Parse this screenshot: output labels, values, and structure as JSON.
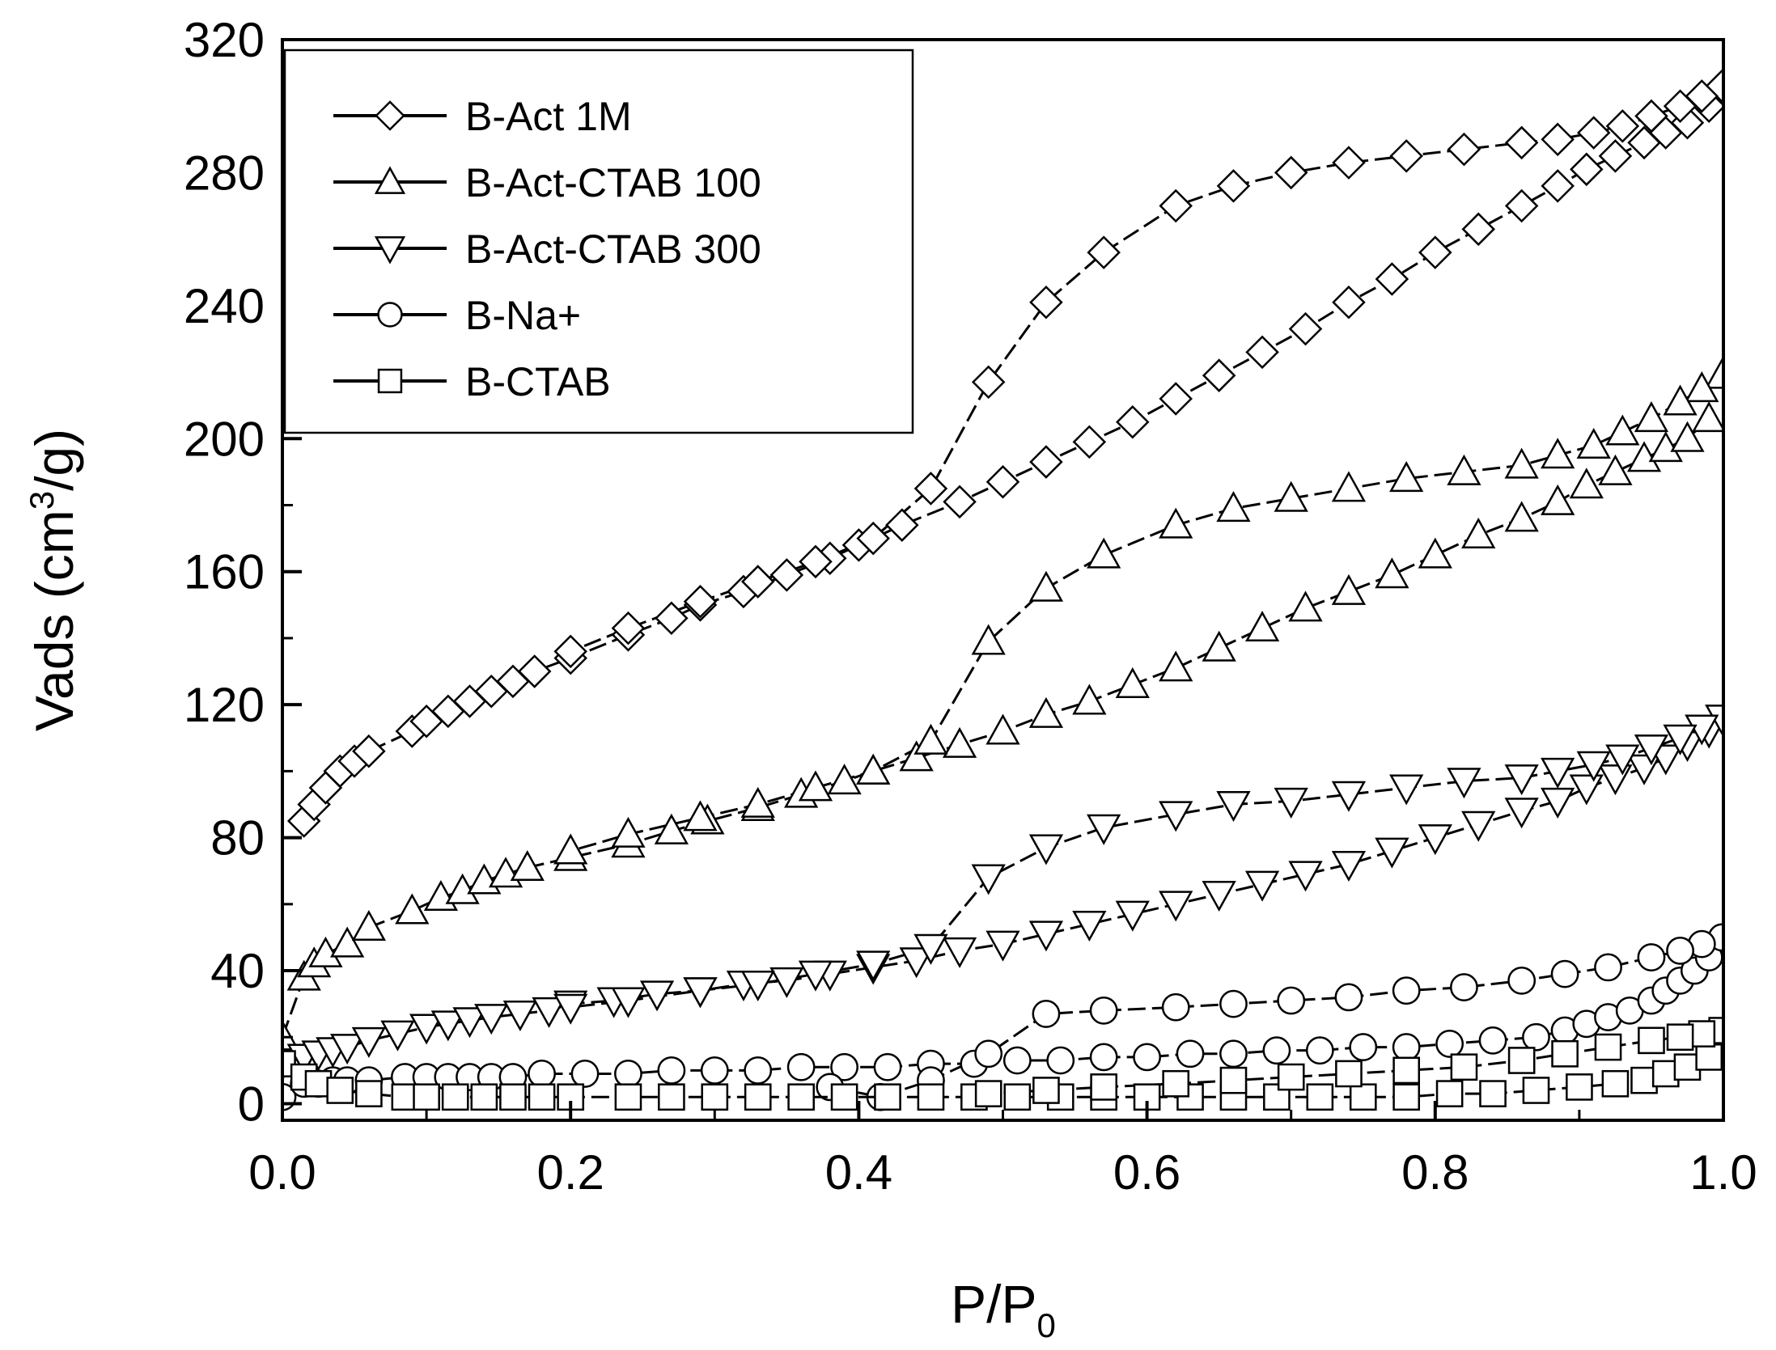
{
  "chart_data": {
    "type": "scatter",
    "title": "",
    "xlabel": "P/P",
    "xlabel_sub": "0",
    "ylabel": "Vads (cm",
    "ylabel_sup": "3",
    "ylabel_end": "/g)",
    "xlim": [
      0.0,
      1.0
    ],
    "ylim": [
      -5,
      320
    ],
    "xticks": [
      0.0,
      0.2,
      0.4,
      0.6,
      0.8,
      1.0
    ],
    "xtick_labels": [
      "0.0",
      "0.2",
      "0.4",
      "0.6",
      "0.8",
      "1.0"
    ],
    "yticks": [
      0,
      40,
      80,
      120,
      160,
      200,
      240,
      280,
      320
    ],
    "ytick_labels": [
      "0",
      "40",
      "80",
      "120",
      "160",
      "200",
      "240",
      "280",
      "320"
    ],
    "grid": false,
    "legend_position": "top-left",
    "series": [
      {
        "name": "B-Act 1M",
        "marker": "diamond",
        "adsorption": {
          "x": [
            0.015,
            0.022,
            0.03,
            0.04,
            0.05,
            0.06,
            0.09,
            0.1,
            0.115,
            0.13,
            0.145,
            0.16,
            0.175,
            0.2,
            0.24,
            0.27,
            0.29,
            0.32,
            0.35,
            0.38,
            0.4,
            0.43,
            0.47,
            0.5,
            0.53,
            0.56,
            0.59,
            0.62,
            0.65,
            0.68,
            0.71,
            0.74,
            0.77,
            0.8,
            0.83,
            0.86,
            0.885,
            0.905,
            0.925,
            0.945,
            0.96,
            0.975,
            0.99
          ],
          "y": [
            85,
            90,
            95,
            100,
            103,
            106,
            112,
            115,
            118,
            121,
            124,
            127,
            130,
            134,
            141,
            146,
            150,
            154,
            159,
            164,
            168,
            174,
            181,
            187,
            193,
            199,
            205,
            212,
            219,
            226,
            233,
            241,
            248,
            256,
            263,
            270,
            276,
            281,
            285,
            289,
            292,
            295,
            300
          ]
        },
        "desorption": {
          "x": [
            0.999,
            0.985,
            0.97,
            0.95,
            0.93,
            0.91,
            0.885,
            0.86,
            0.82,
            0.78,
            0.74,
            0.7,
            0.66,
            0.62,
            0.57,
            0.53,
            0.49,
            0.45,
            0.41,
            0.37,
            0.33,
            0.29,
            0.24,
            0.2
          ],
          "y": [
            306,
            303,
            300,
            297,
            294,
            292,
            290,
            289,
            287,
            285,
            283,
            280,
            276,
            270,
            256,
            241,
            217,
            185,
            170,
            163,
            157,
            151,
            143,
            136
          ]
        }
      },
      {
        "name": "B-Act-CTAB 100",
        "marker": "triangle-up",
        "adsorption": {
          "x": [
            0.0,
            0.015,
            0.022,
            0.03,
            0.045,
            0.06,
            0.09,
            0.11,
            0.125,
            0.14,
            0.155,
            0.17,
            0.2,
            0.24,
            0.27,
            0.295,
            0.33,
            0.36,
            0.39,
            0.41,
            0.44,
            0.47,
            0.5,
            0.53,
            0.56,
            0.59,
            0.62,
            0.65,
            0.68,
            0.71,
            0.74,
            0.77,
            0.8,
            0.83,
            0.86,
            0.885,
            0.905,
            0.925,
            0.945,
            0.96,
            0.975,
            0.99
          ],
          "y": [
            20,
            38,
            42,
            45,
            48,
            53,
            58,
            62,
            64,
            67,
            69,
            71,
            74,
            78,
            82,
            85,
            89,
            93,
            97,
            100,
            104,
            108,
            112,
            117,
            121,
            126,
            131,
            137,
            143,
            149,
            154,
            159,
            165,
            171,
            176,
            181,
            186,
            190,
            194,
            197,
            200,
            206
          ]
        },
        "desorption": {
          "x": [
            0.999,
            0.985,
            0.97,
            0.95,
            0.93,
            0.91,
            0.885,
            0.86,
            0.82,
            0.78,
            0.74,
            0.7,
            0.66,
            0.62,
            0.57,
            0.53,
            0.49,
            0.45,
            0.41,
            0.37,
            0.33,
            0.29,
            0.24,
            0.2
          ],
          "y": [
            219,
            215,
            211,
            206,
            202,
            198,
            195,
            192,
            190,
            188,
            185,
            182,
            179,
            174,
            165,
            155,
            139,
            109,
            100,
            95,
            90,
            86,
            81,
            76
          ]
        }
      },
      {
        "name": "B-Act-CTAB 300",
        "marker": "triangle-down",
        "adsorption": {
          "x": [
            0.0,
            0.015,
            0.025,
            0.035,
            0.045,
            0.06,
            0.08,
            0.1,
            0.115,
            0.13,
            0.145,
            0.165,
            0.185,
            0.2,
            0.23,
            0.26,
            0.29,
            0.32,
            0.35,
            0.38,
            0.41,
            0.44,
            0.47,
            0.5,
            0.53,
            0.56,
            0.59,
            0.62,
            0.65,
            0.68,
            0.71,
            0.74,
            0.77,
            0.8,
            0.83,
            0.86,
            0.885,
            0.905,
            0.925,
            0.945,
            0.96,
            0.975,
            0.99
          ],
          "y": [
            12,
            14,
            15,
            16,
            17,
            19,
            21,
            23,
            24,
            25,
            26,
            27,
            28,
            30,
            31,
            33,
            34,
            36,
            37,
            39,
            41,
            43,
            46,
            48,
            51,
            54,
            57,
            60,
            63,
            66,
            69,
            72,
            76,
            80,
            84,
            88,
            91,
            95,
            98,
            101,
            104,
            108,
            112
          ]
        },
        "desorption": {
          "x": [
            0.999,
            0.985,
            0.97,
            0.95,
            0.93,
            0.91,
            0.885,
            0.86,
            0.82,
            0.78,
            0.74,
            0.7,
            0.66,
            0.62,
            0.57,
            0.53,
            0.49,
            0.45,
            0.41,
            0.37,
            0.33,
            0.29,
            0.24,
            0.2
          ],
          "y": [
            116,
            113,
            110,
            107,
            104,
            102,
            100,
            98,
            97,
            95,
            93,
            91,
            90,
            87,
            83,
            77,
            68,
            47,
            42,
            39,
            36,
            34,
            31,
            29
          ]
        }
      },
      {
        "name": "B-Na+",
        "marker": "circle",
        "adsorption": {
          "x": [
            0.0,
            0.015,
            0.025,
            0.035,
            0.045,
            0.06,
            0.085,
            0.1,
            0.115,
            0.13,
            0.145,
            0.16,
            0.18,
            0.21,
            0.24,
            0.27,
            0.3,
            0.33,
            0.36,
            0.39,
            0.42,
            0.45,
            0.48,
            0.51,
            0.54,
            0.57,
            0.6,
            0.63,
            0.66,
            0.69,
            0.72,
            0.75,
            0.78,
            0.81,
            0.84,
            0.87,
            0.89,
            0.905,
            0.92,
            0.935,
            0.95,
            0.96,
            0.97,
            0.98,
            0.99
          ],
          "y": [
            2,
            6,
            6,
            7,
            7,
            7,
            8,
            8,
            8,
            8,
            8,
            8,
            9,
            9,
            9,
            10,
            10,
            10,
            11,
            11,
            11,
            12,
            12,
            13,
            13,
            14,
            14,
            15,
            15,
            16,
            16,
            17,
            17,
            18,
            19,
            20,
            22,
            24,
            26,
            28,
            31,
            34,
            37,
            40,
            44
          ]
        },
        "desorption": {
          "x": [
            0.999,
            0.985,
            0.97,
            0.95,
            0.92,
            0.89,
            0.86,
            0.82,
            0.78,
            0.74,
            0.7,
            0.66,
            0.62,
            0.57,
            0.53,
            0.49,
            0.45,
            0.415,
            0.38
          ],
          "y": [
            50,
            48,
            46,
            44,
            41,
            39,
            37,
            35,
            34,
            32,
            31,
            30,
            29,
            28,
            27,
            15,
            7,
            2,
            5
          ]
        }
      },
      {
        "name": "B-CTAB",
        "marker": "square",
        "adsorption": {
          "x": [
            0.0,
            0.015,
            0.025,
            0.04,
            0.06,
            0.085,
            0.1,
            0.12,
            0.14,
            0.16,
            0.18,
            0.2,
            0.24,
            0.27,
            0.3,
            0.33,
            0.36,
            0.39,
            0.42,
            0.45,
            0.48,
            0.51,
            0.54,
            0.57,
            0.6,
            0.63,
            0.66,
            0.69,
            0.72,
            0.75,
            0.78,
            0.81,
            0.84,
            0.87,
            0.9,
            0.925,
            0.945,
            0.96,
            0.975,
            0.99
          ],
          "y": [
            12,
            8,
            6,
            4,
            3,
            2,
            2,
            2,
            2,
            2,
            2,
            2,
            2,
            2,
            2,
            2,
            2,
            2,
            2,
            2,
            2,
            2,
            2,
            2,
            2,
            2,
            2,
            2,
            2,
            2,
            2,
            3,
            3,
            4,
            5,
            6,
            7,
            9,
            11,
            14
          ]
        },
        "desorption": {
          "x": [
            0.999,
            0.985,
            0.97,
            0.95,
            0.92,
            0.89,
            0.86,
            0.82,
            0.78,
            0.74,
            0.7,
            0.66,
            0.62,
            0.57,
            0.53,
            0.49
          ],
          "y": [
            22,
            21,
            20,
            19,
            17,
            15,
            13,
            11,
            10,
            9,
            8,
            7,
            6,
            5,
            4,
            3
          ]
        }
      }
    ]
  }
}
